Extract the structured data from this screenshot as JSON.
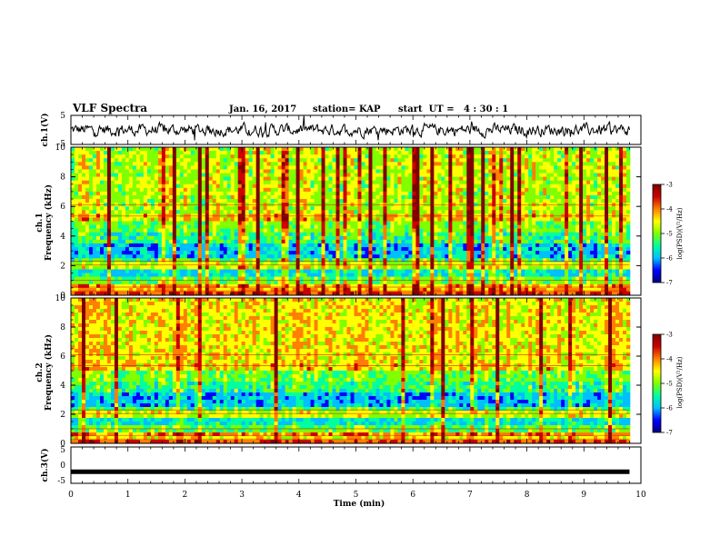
{
  "header": {
    "title": "VLF Spectra",
    "date": "Jan. 16, 2017",
    "station": "station= KAP",
    "start": "start  UT =   4 : 30 : 1"
  },
  "chart_data": [
    {
      "type": "line",
      "ylabel": "ch.1(V)",
      "ylim": [
        -5,
        5
      ],
      "yticks": [
        "5",
        "-5"
      ],
      "xlim": [
        0,
        10
      ],
      "note": "noisy waveform roughly between -4 and +4 V, hovering near 0; data ends near 9.8 min"
    },
    {
      "type": "heatmap",
      "ylabel": "ch.1\nFrequency (kHz)",
      "ylim": [
        0,
        10
      ],
      "yticks": [
        "0",
        "2",
        "4",
        "6",
        "8",
        "10"
      ],
      "xlim": [
        0,
        10
      ],
      "colorbar": {
        "label": "log(PSD)(V²/Hz)",
        "ticks": [
          "-3",
          "-4",
          "-5",
          "-6",
          "-7"
        ],
        "range": [
          -7,
          -3
        ]
      },
      "note": "spectrogram: mostly green/cyan background (~-5), blue bands near 2.5-3.5 kHz and 1.2-1.8 kHz (~-6), yellow/red bands below 0.8 kHz and near 5.3 kHz, vertical red sferic streaks"
    },
    {
      "type": "heatmap",
      "ylabel": "ch.2\nFrequency (kHz)",
      "ylim": [
        0,
        10
      ],
      "yticks": [
        "0",
        "2",
        "4",
        "6",
        "8",
        "10"
      ],
      "xlim": [
        0,
        10
      ],
      "colorbar": {
        "label": "log(PSD)(V²/Hz)",
        "ticks": [
          "-3",
          "-4",
          "-5",
          "-6",
          "-7"
        ],
        "range": [
          -7,
          -3
        ]
      },
      "note": "spectrogram similar to ch.1 with more yellow/red above 5 kHz and blue bands near 1-3.5 kHz"
    },
    {
      "type": "line",
      "ylabel": "ch.3(V)",
      "ylim": [
        -5,
        5
      ],
      "yticks": [
        "5",
        "0",
        "-5"
      ],
      "xlim": [
        0,
        10
      ],
      "xlabel": "Time (min)",
      "xticks": [
        "0",
        "1",
        "2",
        "3",
        "4",
        "5",
        "6",
        "7",
        "8",
        "9",
        "10"
      ],
      "x": [
        0,
        9.8
      ],
      "y": [
        -1.8,
        -1.8
      ],
      "note": "thick flat line at about -1.8 V"
    }
  ],
  "colors": {
    "line": "#000000",
    "colormap": [
      "#00007f",
      "#0000ff",
      "#00bfff",
      "#00ff9f",
      "#7fff00",
      "#ffff00",
      "#ff7f00",
      "#cc0000",
      "#7f0000"
    ]
  }
}
